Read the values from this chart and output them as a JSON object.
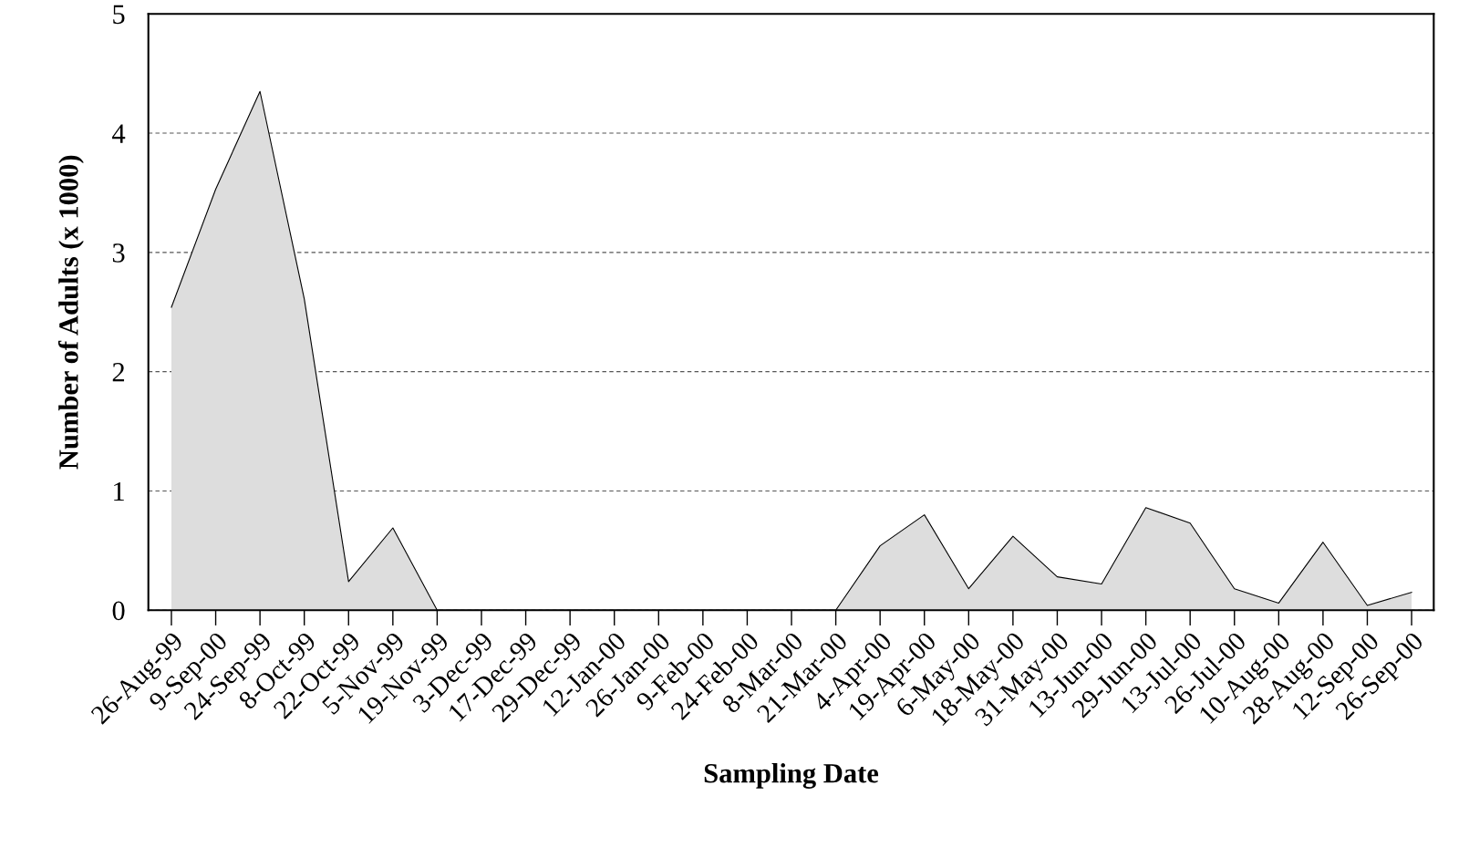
{
  "chart_data": {
    "type": "area",
    "xlabel": "Sampling Date",
    "ylabel": "Number of Adults (x 1000)",
    "categories": [
      "26-Aug-99",
      "9-Sep-00",
      "24-Sep-99",
      "8-Oct-99",
      "22-Oct-99",
      "5-Nov-99",
      "19-Nov-99",
      "3-Dec-99",
      "17-Dec-99",
      "29-Dec-99",
      "12-Jan-00",
      "26-Jan-00",
      "9-Feb-00",
      "24-Feb-00",
      "8-Mar-00",
      "21-Mar-00",
      "4-Apr-00",
      "19-Apr-00",
      "6-May-00",
      "18-May-00",
      "31-May-00",
      "13-Jun-00",
      "29-Jun-00",
      "13-Jul-00",
      "26-Jul-00",
      "10-Aug-00",
      "28-Aug-00",
      "12-Sep-00",
      "26-Sep-00"
    ],
    "series": [
      {
        "color": "#dddddd",
        "values": [
          2.54,
          3.53,
          4.35,
          2.61,
          0.24,
          0.69,
          0,
          0,
          0,
          0,
          0,
          0,
          0,
          0,
          0,
          0,
          0.54,
          0.8,
          0.18,
          0.62,
          0.28,
          0.22,
          0.86,
          0.73,
          0.18,
          0.06,
          0.57,
          0.04,
          0.15
        ]
      }
    ],
    "ylim": [
      0,
      5
    ],
    "yticks": [
      0,
      1,
      2,
      3,
      4,
      5
    ],
    "grid": "y",
    "legend": false
  }
}
